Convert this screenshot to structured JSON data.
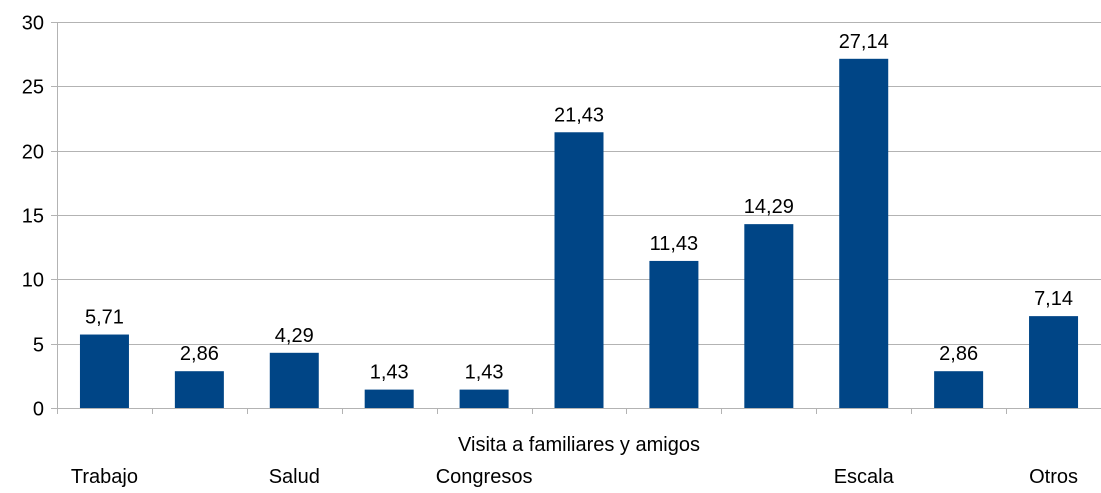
{
  "chart_data": {
    "type": "bar",
    "categories": [
      "Trabajo",
      "",
      "Salud",
      "",
      "Congresos",
      "Visita a familiares y amigos",
      "",
      "",
      "Escala",
      "",
      "Otros"
    ],
    "values": [
      5.71,
      2.86,
      4.29,
      1.43,
      1.43,
      21.43,
      11.43,
      14.29,
      27.14,
      2.86,
      7.14
    ],
    "data_labels": [
      "5,71",
      "2,86",
      "4,29",
      "1,43",
      "1,43",
      "21,43",
      "11,43",
      "14,29",
      "27,14",
      "2,86",
      "7,14"
    ],
    "ylim": [
      0,
      30
    ],
    "yticks": [
      0,
      5,
      10,
      15,
      20,
      25,
      30
    ],
    "ytick_labels": [
      "0",
      "5",
      "10",
      "15",
      "20",
      "25",
      "30"
    ],
    "grid": true,
    "legend": "none",
    "colors": {
      "bar": "#004586",
      "grid": "#b3b3b3",
      "axis": "#b3b3b3"
    }
  }
}
